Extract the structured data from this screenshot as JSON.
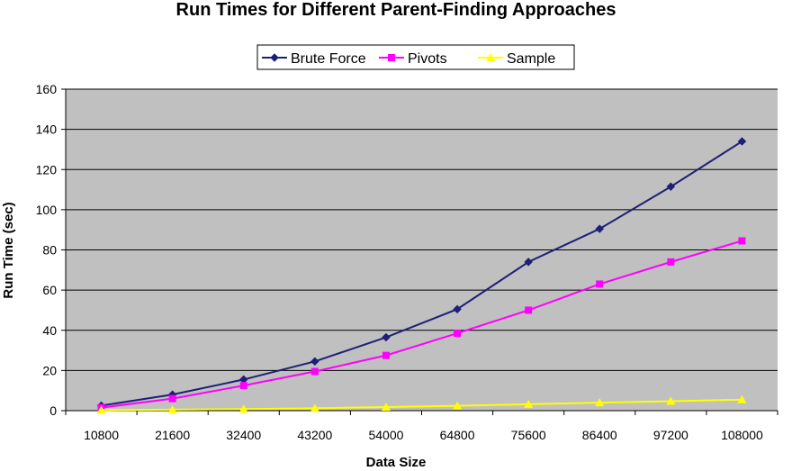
{
  "chart_data": {
    "type": "line",
    "title": "Run Times for Different Parent-Finding Approaches",
    "xlabel": "Data Size",
    "ylabel": "Run Time (sec)",
    "categories": [
      "10800",
      "21600",
      "32400",
      "43200",
      "54000",
      "64800",
      "75600",
      "86400",
      "97200",
      "108000"
    ],
    "ylim": [
      0,
      160
    ],
    "yticks": [
      0,
      20,
      40,
      60,
      80,
      100,
      120,
      140,
      160
    ],
    "grid": true,
    "legend_position": "top",
    "plot_background": "#c0c0c0",
    "series": [
      {
        "name": "Brute Force",
        "color": "#1f1f7a",
        "marker": "diamond",
        "values": [
          2.5,
          8,
          15.5,
          24.5,
          36.5,
          50.5,
          74,
          90.5,
          111.5,
          134
        ]
      },
      {
        "name": "Pivots",
        "color": "#ff00ff",
        "marker": "square",
        "values": [
          1.5,
          6,
          12.5,
          19.5,
          27.5,
          38.5,
          50,
          63,
          74,
          84.5
        ]
      },
      {
        "name": "Sample",
        "color": "#ffff00",
        "marker": "triangle",
        "values": [
          0.3,
          0.5,
          0.8,
          1.2,
          1.8,
          2.4,
          3.2,
          4,
          4.7,
          5.5
        ]
      }
    ]
  }
}
